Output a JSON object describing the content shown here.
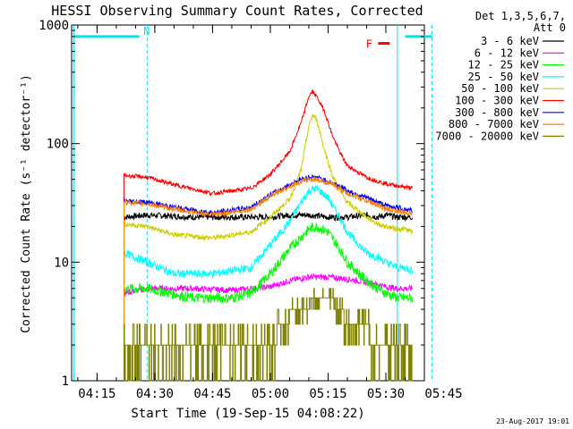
{
  "chart_data": {
    "type": "line",
    "title": "HESSI Observing Summary Count Rates, Corrected",
    "xlabel": "Start Time (19-Sep-15 04:08:22)",
    "ylabel": "Corrected Count Rate (s⁻¹ detector⁻¹)",
    "yscale": "log",
    "ylim": [
      1,
      1000
    ],
    "xlim_min": [
      8.4,
      100.0
    ],
    "x_tick_labels": [
      "04:15",
      "04:30",
      "04:45",
      "05:00",
      "05:15",
      "05:30",
      "05:45"
    ],
    "x_tick_values_min": [
      15,
      30,
      45,
      60,
      75,
      90,
      105
    ],
    "y_tick_labels": [
      "1",
      "10",
      "100",
      "1000"
    ],
    "y_tick_values": [
      1,
      10,
      100,
      1000
    ],
    "legend_header": [
      "Det 1,3,5,6,7,",
      "Att 0"
    ],
    "legend_position": "right",
    "footer_date": "23-Aug-2017 19:01",
    "annotations": [
      {
        "label": "N",
        "color": "#00e5ee",
        "segments_min": [
          [
            9,
            26
          ],
          [
            95,
            102
          ]
        ],
        "level": 800
      },
      {
        "label": "F",
        "color": "#ff0000",
        "segments_min": [
          [
            88,
            91
          ]
        ],
        "level": 700
      }
    ],
    "vertical_markers": [
      {
        "x_min": 9,
        "color": "#00e5ee",
        "style": "solid"
      },
      {
        "x_min": 28,
        "color": "#00e5ee",
        "style": "dashed"
      },
      {
        "x_min": 93,
        "color": "#00e5ee",
        "style": "solid"
      },
      {
        "x_min": 102,
        "color": "#00e5ee",
        "style": "dashed"
      }
    ],
    "series": [
      {
        "name": "3 - 6 keV",
        "color": "#000000",
        "noise": 0.06,
        "x": [
          22,
          28,
          40,
          55,
          60,
          65,
          70,
          75,
          80,
          85,
          88,
          90,
          93,
          95,
          97
        ],
        "y": [
          24,
          25,
          24,
          24,
          24,
          25,
          25,
          24,
          24,
          25,
          24,
          25,
          24,
          24,
          24
        ]
      },
      {
        "name": "6 - 12 keV",
        "color": "#ff00ff",
        "noise": 0.06,
        "x": [
          22,
          28,
          40,
          50,
          60,
          65,
          70,
          75,
          80,
          85,
          88,
          90,
          93,
          95,
          97
        ],
        "y": [
          5.5,
          6,
          6,
          5.8,
          6.2,
          7,
          7.5,
          7.5,
          7.2,
          6.8,
          6.5,
          6.2,
          6,
          6,
          6
        ]
      },
      {
        "name": "12 - 25 keV",
        "color": "#00ff00",
        "noise": 0.1,
        "x": [
          22,
          28,
          40,
          50,
          55,
          60,
          65,
          70,
          72,
          75,
          78,
          80,
          85,
          88,
          90,
          93,
          95,
          97
        ],
        "y": [
          6,
          6,
          5,
          5,
          5.5,
          8,
          13,
          19,
          20,
          18,
          13,
          10,
          7,
          6,
          5.5,
          5,
          5,
          5
        ]
      },
      {
        "name": "25 - 50 keV",
        "color": "#00ffff",
        "noise": 0.08,
        "x": [
          22,
          28,
          35,
          45,
          55,
          60,
          65,
          68,
          70,
          72,
          75,
          78,
          80,
          85,
          88,
          90,
          93,
          95,
          97
        ],
        "y": [
          12,
          10,
          8,
          8,
          9,
          14,
          22,
          32,
          40,
          42,
          35,
          24,
          18,
          12,
          11,
          10,
          9,
          9,
          8.5
        ]
      },
      {
        "name": "50 - 100 keV",
        "color": "#cccc00",
        "noise": 0.05,
        "x": [
          22,
          28,
          35,
          45,
          55,
          60,
          65,
          68,
          70,
          71,
          72,
          74,
          76,
          78,
          80,
          85,
          88,
          90,
          93,
          95,
          97
        ],
        "y": [
          21,
          20,
          17,
          16,
          18,
          24,
          34,
          60,
          140,
          175,
          160,
          90,
          55,
          40,
          32,
          24,
          21,
          20,
          19,
          19,
          18
        ]
      },
      {
        "name": "100 - 300 keV",
        "color": "#ff0000",
        "noise": 0.04,
        "x": [
          22,
          28,
          35,
          45,
          55,
          60,
          65,
          68,
          70,
          71,
          72,
          74,
          76,
          78,
          80,
          85,
          88,
          90,
          93,
          95,
          97
        ],
        "y": [
          54,
          52,
          45,
          38,
          42,
          55,
          85,
          150,
          250,
          275,
          250,
          190,
          120,
          85,
          65,
          52,
          48,
          46,
          44,
          43,
          42
        ]
      },
      {
        "name": "300 - 800 keV",
        "color": "#0000ff",
        "noise": 0.05,
        "x": [
          22,
          28,
          35,
          45,
          55,
          60,
          65,
          68,
          70,
          72,
          75,
          78,
          80,
          85,
          88,
          90,
          93,
          95,
          97
        ],
        "y": [
          33,
          32,
          29,
          26,
          29,
          37,
          45,
          50,
          52,
          52,
          48,
          44,
          40,
          35,
          32,
          30,
          29,
          28,
          27
        ]
      },
      {
        "name": "800 - 7000 keV",
        "color": "#ff8000",
        "noise": 0.05,
        "x": [
          22,
          28,
          35,
          45,
          55,
          60,
          65,
          68,
          70,
          72,
          75,
          78,
          80,
          85,
          88,
          90,
          93,
          95,
          97
        ],
        "y": [
          32,
          31,
          28,
          25,
          28,
          36,
          44,
          48,
          50,
          50,
          47,
          42,
          38,
          33,
          30,
          28,
          27,
          26,
          26
        ]
      },
      {
        "name": "7000 - 20000 keV",
        "color": "#808000",
        "noise": 0.0,
        "step": true,
        "x": [
          22,
          30,
          45,
          55,
          60,
          63,
          66,
          68,
          72,
          75,
          78,
          80,
          84,
          88,
          92,
          95,
          97
        ],
        "y": [
          2,
          2,
          2,
          2,
          2,
          3,
          4,
          4,
          5,
          5,
          4,
          3,
          3,
          2,
          2,
          2,
          2
        ]
      }
    ]
  }
}
